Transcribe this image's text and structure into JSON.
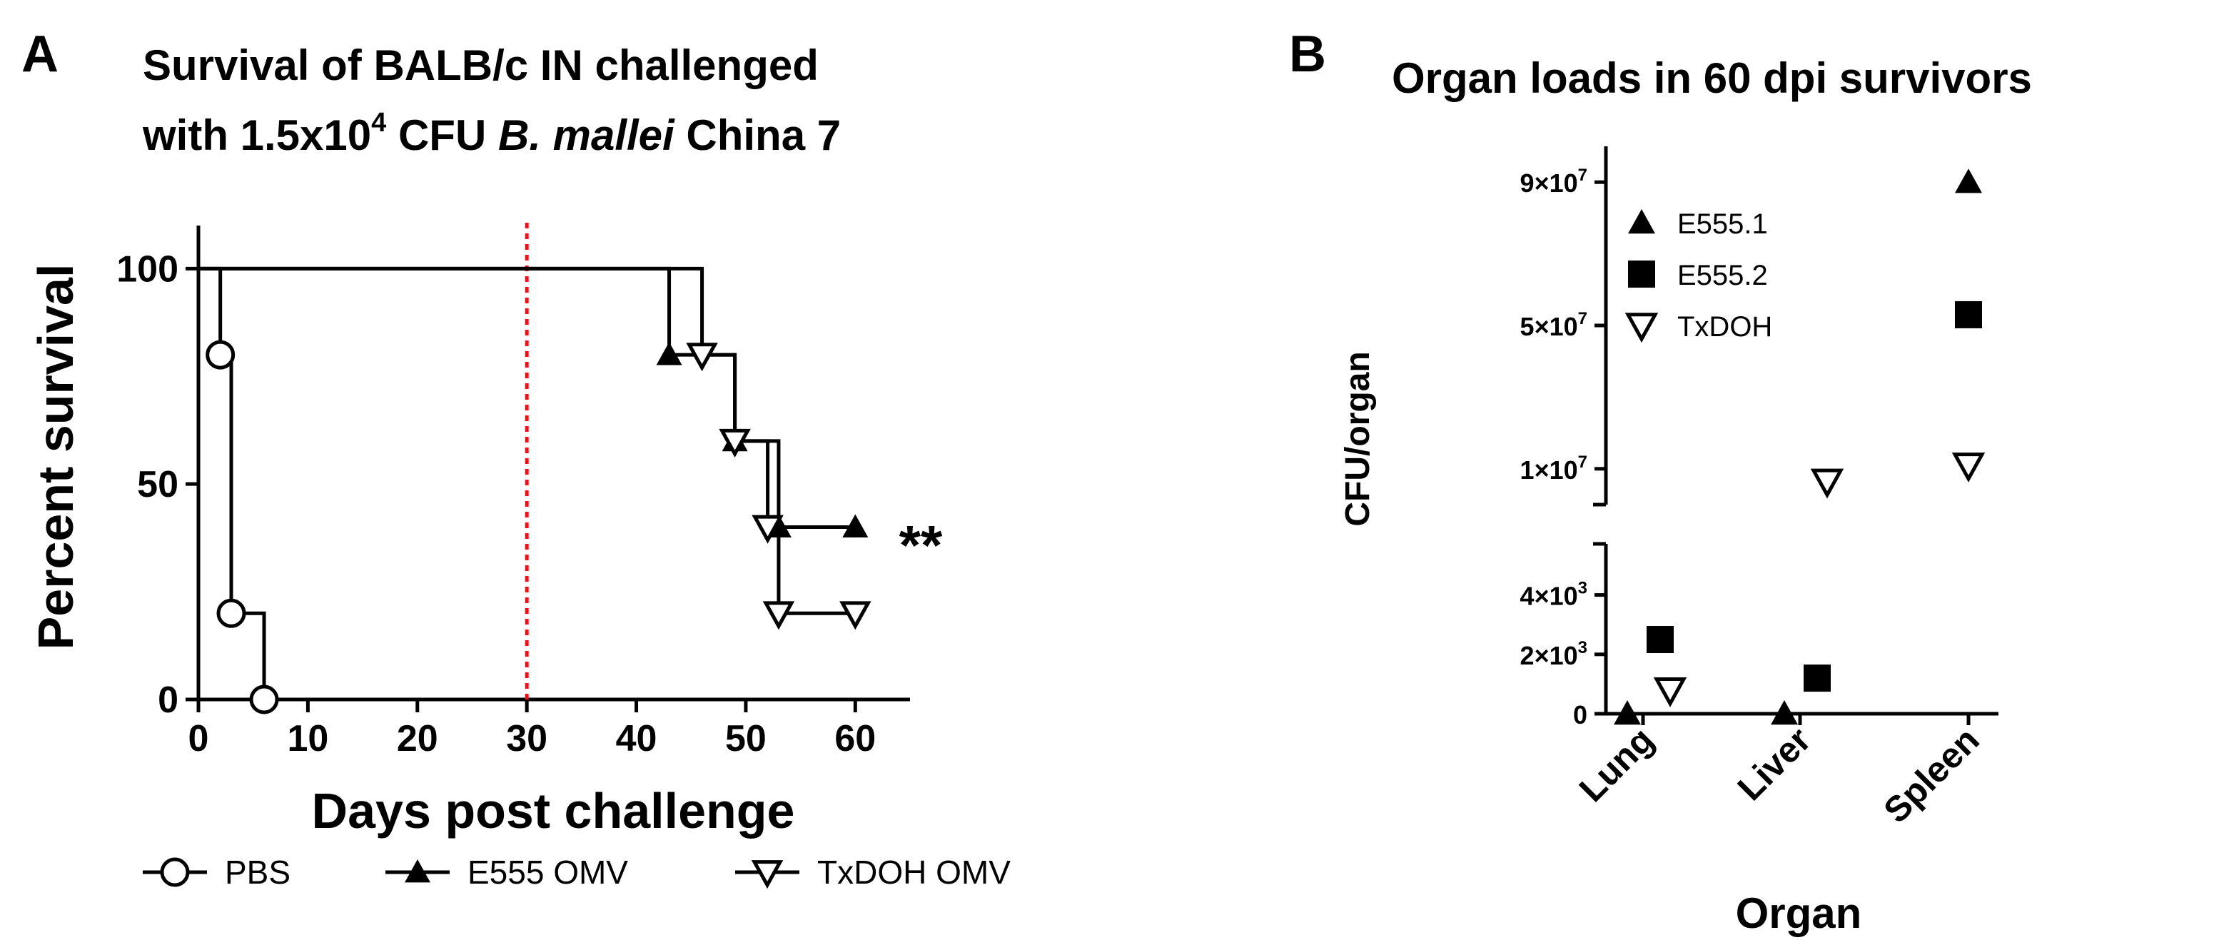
{
  "colors": {
    "ink": "#000000",
    "dashed_line": "#e8141b",
    "background": "#ffffff"
  },
  "chart_data": [
    {
      "panel": "A",
      "type": "line",
      "subtype": "kaplan-meier step survival",
      "title_line1": "Survival of  BALB/c IN challenged",
      "title_line2": {
        "pre": "with 1.5x10",
        "sup": "4",
        "mid": " CFU ",
        "italic": "B. mallei",
        "post": " China 7"
      },
      "xlabel": "Days post challenge",
      "ylabel": "Percent survival",
      "xlim": [
        0,
        65
      ],
      "ylim": [
        0,
        110
      ],
      "xticks": [
        0,
        10,
        20,
        30,
        40,
        50,
        60
      ],
      "yticks": [
        0,
        50,
        100
      ],
      "reference_line": {
        "x": 30,
        "style": "dotted",
        "color": "#e8141b"
      },
      "annotation": {
        "text": "**",
        "x": 64,
        "y": 38
      },
      "legend_position": "bottom",
      "series": [
        {
          "name": "PBS",
          "marker": "circle-open",
          "steps": [
            [
              0,
              100
            ],
            [
              2,
              80
            ],
            [
              3,
              20
            ],
            [
              6,
              0
            ]
          ],
          "end": 6
        },
        {
          "name": "E555 OMV",
          "marker": "triangle-up-filled",
          "steps": [
            [
              0,
              100
            ],
            [
              43,
              80
            ],
            [
              49,
              60
            ],
            [
              53,
              40
            ]
          ],
          "end": 60
        },
        {
          "name": "TxDOH OMV",
          "marker": "triangle-down-open",
          "steps": [
            [
              0,
              100
            ],
            [
              46,
              80
            ],
            [
              49,
              60
            ],
            [
              52,
              40
            ],
            [
              53,
              20
            ]
          ],
          "end": 60
        }
      ]
    },
    {
      "panel": "B",
      "type": "scatter",
      "title": "Organ loads in 60 dpi survivors",
      "xlabel": "Organ",
      "ylabel": "CFU/organ",
      "categories": [
        "Lung",
        "Liver",
        "Spleen"
      ],
      "axis_break": true,
      "lower_ylim": [
        0,
        5000
      ],
      "upper_ylim": [
        0,
        100000000
      ],
      "lower_yticks": [
        0,
        2000,
        4000
      ],
      "lower_ytick_labels": [
        "0",
        "2×10|3",
        "4×10|3"
      ],
      "upper_yticks": [
        10000000,
        50000000,
        90000000
      ],
      "upper_ytick_labels": [
        "1×10|7",
        "5×10|7",
        "9×10|7"
      ],
      "legend_position": "top-left",
      "series": [
        {
          "name": "E555.1",
          "marker": "triangle-up-filled",
          "points": [
            [
              "Lung",
              0
            ],
            [
              "Liver",
              0
            ],
            [
              "Spleen",
              90000000
            ]
          ]
        },
        {
          "name": "E555.2",
          "marker": "square-filled",
          "points": [
            [
              "Lung",
              2500
            ],
            [
              "Liver",
              1200
            ],
            [
              "Spleen",
              53000000
            ]
          ]
        },
        {
          "name": "TxDOH",
          "marker": "triangle-down-open",
          "points": [
            [
              "Lung",
              800
            ],
            [
              "Liver",
              6500000
            ],
            [
              "Spleen",
              11000000
            ]
          ]
        }
      ]
    }
  ]
}
